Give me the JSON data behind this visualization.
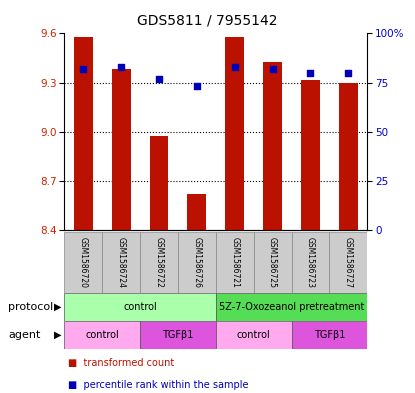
{
  "title": "GDS5811 / 7955142",
  "samples": [
    "GSM1586720",
    "GSM1586724",
    "GSM1586722",
    "GSM1586726",
    "GSM1586721",
    "GSM1586725",
    "GSM1586723",
    "GSM1586727"
  ],
  "bar_values": [
    9.575,
    9.385,
    8.975,
    8.62,
    9.575,
    9.425,
    9.315,
    9.3
  ],
  "bar_bottom": 8.4,
  "percentile_values": [
    82,
    83,
    77,
    73,
    83,
    82,
    80,
    80
  ],
  "ylim_left": [
    8.4,
    9.6
  ],
  "ylim_right": [
    0,
    100
  ],
  "yticks_left": [
    8.4,
    8.7,
    9.0,
    9.3,
    9.6
  ],
  "yticks_right": [
    0,
    25,
    50,
    75,
    100
  ],
  "ytick_labels_right": [
    "0",
    "25",
    "50",
    "75",
    "100%"
  ],
  "bar_color": "#bb1100",
  "dot_color": "#0000bb",
  "grid_color": "#000000",
  "protocol_groups": [
    {
      "label": "control",
      "start": 0,
      "end": 3,
      "color": "#aaffaa"
    },
    {
      "label": "5Z-7-Oxozeanol pretreatment",
      "start": 4,
      "end": 7,
      "color": "#55dd55"
    }
  ],
  "agent_groups": [
    {
      "label": "control",
      "start": 0,
      "end": 1,
      "color": "#ffaaee"
    },
    {
      "label": "TGFβ1",
      "start": 2,
      "end": 3,
      "color": "#dd55dd"
    },
    {
      "label": "control",
      "start": 4,
      "end": 5,
      "color": "#ffaaee"
    },
    {
      "label": "TGFβ1",
      "start": 6,
      "end": 7,
      "color": "#dd55dd"
    }
  ],
  "legend_items": [
    {
      "label": "transformed count",
      "color": "#bb1100"
    },
    {
      "label": "percentile rank within the sample",
      "color": "#0000bb"
    }
  ],
  "label_row1": "protocol",
  "label_row2": "agent",
  "bg_color": "#ffffff",
  "tick_label_color_left": "#cc2200",
  "tick_label_color_right": "#0000cc"
}
